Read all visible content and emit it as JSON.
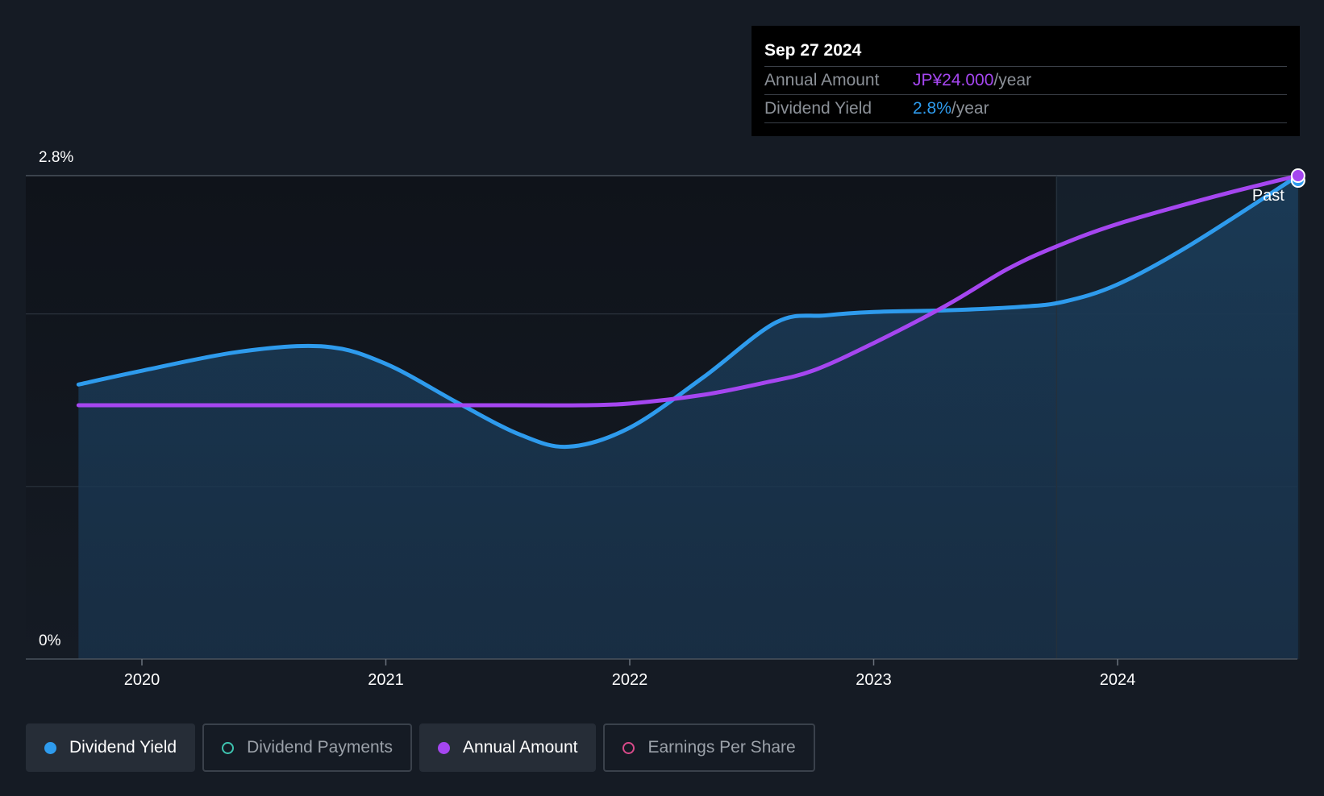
{
  "chart_data": {
    "type": "line",
    "x_ticks": [
      "2020",
      "2021",
      "2022",
      "2023",
      "2024"
    ],
    "y_labels": {
      "top": "2.8%",
      "bottom": "0%"
    },
    "ylim": [
      0,
      2.8
    ],
    "past_label": "Past",
    "series": [
      {
        "name": "Dividend Yield",
        "color": "#2e9bed",
        "area": true,
        "points": [
          [
            2019.74,
            1.59
          ],
          [
            2020.0,
            1.67
          ],
          [
            2020.4,
            1.78
          ],
          [
            2020.75,
            1.81
          ],
          [
            2021.0,
            1.71
          ],
          [
            2021.3,
            1.48
          ],
          [
            2021.55,
            1.3
          ],
          [
            2021.75,
            1.23
          ],
          [
            2022.0,
            1.34
          ],
          [
            2022.3,
            1.63
          ],
          [
            2022.6,
            1.95
          ],
          [
            2022.8,
            1.99
          ],
          [
            2023.0,
            2.01
          ],
          [
            2023.3,
            2.02
          ],
          [
            2023.6,
            2.04
          ],
          [
            2023.78,
            2.07
          ],
          [
            2024.0,
            2.17
          ],
          [
            2024.3,
            2.4
          ],
          [
            2024.74,
            2.8
          ]
        ]
      },
      {
        "name": "Annual Amount",
        "color": "#a546f0",
        "area": false,
        "points": [
          [
            2019.74,
            1.47
          ],
          [
            2020.5,
            1.47
          ],
          [
            2021.5,
            1.47
          ],
          [
            2021.8,
            1.47
          ],
          [
            2022.0,
            1.48
          ],
          [
            2022.3,
            1.53
          ],
          [
            2022.55,
            1.6
          ],
          [
            2022.75,
            1.67
          ],
          [
            2023.0,
            1.83
          ],
          [
            2023.3,
            2.05
          ],
          [
            2023.55,
            2.26
          ],
          [
            2023.75,
            2.39
          ],
          [
            2024.0,
            2.52
          ],
          [
            2024.4,
            2.68
          ],
          [
            2024.74,
            2.8
          ]
        ]
      }
    ],
    "legend_position": "bottom-left",
    "grid": true
  },
  "tooltip": {
    "date": "Sep 27 2024",
    "rows": [
      {
        "label": "Annual Amount",
        "value": "JP¥24.000",
        "unit": "/year"
      },
      {
        "label": "Dividend Yield",
        "value": "2.8%",
        "unit": "/year"
      }
    ]
  },
  "legend": [
    {
      "label": "Dividend Yield",
      "color": "#2e9bed",
      "active": true
    },
    {
      "label": "Dividend Payments",
      "color": "#3ec4b0",
      "active": false
    },
    {
      "label": "Annual Amount",
      "color": "#a546f0",
      "active": true
    },
    {
      "label": "Earnings Per Share",
      "color": "#d94a8a",
      "active": false
    }
  ]
}
